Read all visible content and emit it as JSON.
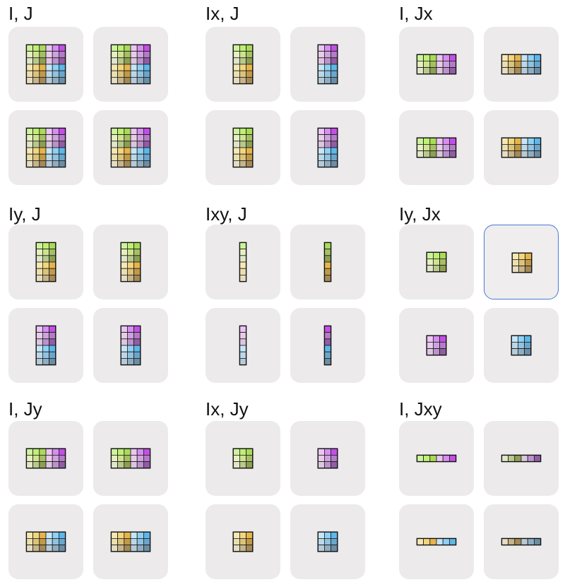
{
  "colors": {
    "A": [
      "#ccf59b",
      "#bfef74",
      "#a9dc56",
      "#e6efbf",
      "#cfe38e",
      "#a7bf63",
      "#e1e6cb",
      "#b9c98c",
      "#8e9f52"
    ],
    "B": [
      "#ecc4f5",
      "#d68ef0",
      "#c44fe7",
      "#e8cce8",
      "#cfa2df",
      "#b47cc8",
      "#ddc6e0",
      "#bb93cc",
      "#925ca6"
    ],
    "C": [
      "#f6e8b4",
      "#f2d67e",
      "#e8b44a",
      "#ebdfae",
      "#dcc37a",
      "#c19a47",
      "#e5dcc2",
      "#c7b589",
      "#a58956"
    ],
    "D": [
      "#c6e6f8",
      "#90d0f2",
      "#5cb7ea",
      "#bcd7e8",
      "#90c3e1",
      "#6ba6ca",
      "#b6cad8",
      "#8fadc2",
      "#6a8ea6"
    ]
  },
  "groups": [
    {
      "label": "I, J",
      "cards": [
        {
          "blocks": [
            [
              "A",
              "B"
            ],
            [
              "C",
              "D"
            ]
          ],
          "sub": [
            [
              0,
              1,
              2
            ],
            [
              0,
              1,
              2
            ]
          ]
        },
        {
          "blocks": [
            [
              "A",
              "B"
            ],
            [
              "C",
              "D"
            ]
          ],
          "sub": [
            [
              0,
              1,
              2
            ],
            [
              0,
              1,
              2
            ]
          ]
        },
        {
          "blocks": [
            [
              "A",
              "B"
            ],
            [
              "C",
              "D"
            ]
          ],
          "sub": [
            [
              0,
              1,
              2
            ],
            [
              0,
              1,
              2
            ]
          ]
        },
        {
          "blocks": [
            [
              "A",
              "B"
            ],
            [
              "C",
              "D"
            ]
          ],
          "sub": [
            [
              0,
              1,
              2
            ],
            [
              0,
              1,
              2
            ]
          ]
        }
      ]
    },
    {
      "label": "Ix, J",
      "cards": [
        {
          "blocks": [
            [
              "A"
            ],
            [
              "C"
            ]
          ],
          "sub": [
            [
              0,
              1,
              2
            ],
            [
              0,
              1,
              2
            ]
          ]
        },
        {
          "blocks": [
            [
              "B"
            ],
            [
              "D"
            ]
          ],
          "sub": [
            [
              0,
              1,
              2
            ],
            [
              0,
              1,
              2
            ]
          ]
        },
        {
          "blocks": [
            [
              "A"
            ],
            [
              "C"
            ]
          ],
          "sub": [
            [
              0,
              1,
              2
            ],
            [
              0,
              1,
              2
            ]
          ]
        },
        {
          "blocks": [
            [
              "B"
            ],
            [
              "D"
            ]
          ],
          "sub": [
            [
              0,
              1,
              2
            ],
            [
              0,
              1,
              2
            ]
          ]
        }
      ]
    },
    {
      "label": "I, Jx",
      "cards": [
        {
          "blocks": [
            [
              "A",
              "B"
            ]
          ],
          "sub": [
            [
              0,
              1,
              2
            ],
            [
              0,
              1,
              2
            ]
          ]
        },
        {
          "blocks": [
            [
              "C",
              "D"
            ]
          ],
          "sub": [
            [
              0,
              1,
              2
            ],
            [
              0,
              1,
              2
            ]
          ]
        },
        {
          "blocks": [
            [
              "A",
              "B"
            ]
          ],
          "sub": [
            [
              0,
              1,
              2
            ],
            [
              0,
              1,
              2
            ]
          ]
        },
        {
          "blocks": [
            [
              "C",
              "D"
            ]
          ],
          "sub": [
            [
              0,
              1,
              2
            ],
            [
              0,
              1,
              2
            ]
          ]
        }
      ]
    },
    {
      "label": "Iy, J",
      "cards": [
        {
          "blocks": [
            [
              "A"
            ],
            [
              "C"
            ]
          ],
          "sub": [
            [
              0,
              1,
              2
            ],
            [
              0,
              1,
              2
            ]
          ]
        },
        {
          "blocks": [
            [
              "A"
            ],
            [
              "C"
            ]
          ],
          "sub": [
            [
              0,
              1,
              2
            ],
            [
              0,
              1,
              2
            ]
          ]
        },
        {
          "blocks": [
            [
              "B"
            ],
            [
              "D"
            ]
          ],
          "sub": [
            [
              0,
              1,
              2
            ],
            [
              0,
              1,
              2
            ]
          ]
        },
        {
          "blocks": [
            [
              "B"
            ],
            [
              "D"
            ]
          ],
          "sub": [
            [
              0,
              1,
              2
            ],
            [
              0,
              1,
              2
            ]
          ]
        }
      ]
    },
    {
      "label": "Ixy, J",
      "cards": [
        {
          "blocks": [
            [
              "A"
            ],
            [
              "C"
            ]
          ],
          "sub": [
            [
              0,
              1,
              2
            ],
            [
              0
            ]
          ]
        },
        {
          "blocks": [
            [
              "A"
            ],
            [
              "C"
            ]
          ],
          "sub": [
            [
              0,
              1,
              2
            ],
            [
              2
            ]
          ]
        },
        {
          "blocks": [
            [
              "B"
            ],
            [
              "D"
            ]
          ],
          "sub": [
            [
              0,
              1,
              2
            ],
            [
              0
            ]
          ]
        },
        {
          "blocks": [
            [
              "B"
            ],
            [
              "D"
            ]
          ],
          "sub": [
            [
              0,
              1,
              2
            ],
            [
              2
            ]
          ]
        }
      ]
    },
    {
      "label": "Iy, Jx",
      "selected": 1,
      "cards": [
        {
          "blocks": [
            [
              "A"
            ]
          ],
          "sub": [
            [
              0,
              1,
              2
            ],
            [
              0,
              1,
              2
            ]
          ]
        },
        {
          "blocks": [
            [
              "C"
            ]
          ],
          "sub": [
            [
              0,
              1,
              2
            ],
            [
              0,
              1,
              2
            ]
          ]
        },
        {
          "blocks": [
            [
              "B"
            ]
          ],
          "sub": [
            [
              0,
              1,
              2
            ],
            [
              0,
              1,
              2
            ]
          ]
        },
        {
          "blocks": [
            [
              "D"
            ]
          ],
          "sub": [
            [
              0,
              1,
              2
            ],
            [
              0,
              1,
              2
            ]
          ]
        }
      ]
    },
    {
      "label": "I, Jy",
      "cards": [
        {
          "blocks": [
            [
              "A",
              "B"
            ]
          ],
          "sub": [
            [
              0,
              1,
              2
            ],
            [
              0,
              1,
              2
            ]
          ]
        },
        {
          "blocks": [
            [
              "A",
              "B"
            ]
          ],
          "sub": [
            [
              0,
              1,
              2
            ],
            [
              0,
              1,
              2
            ]
          ]
        },
        {
          "blocks": [
            [
              "C",
              "D"
            ]
          ],
          "sub": [
            [
              0,
              1,
              2
            ],
            [
              0,
              1,
              2
            ]
          ]
        },
        {
          "blocks": [
            [
              "C",
              "D"
            ]
          ],
          "sub": [
            [
              0,
              1,
              2
            ],
            [
              0,
              1,
              2
            ]
          ]
        }
      ]
    },
    {
      "label": "Ix, Jy",
      "cards": [
        {
          "blocks": [
            [
              "A"
            ]
          ],
          "sub": [
            [
              0,
              1,
              2
            ],
            [
              0,
              1,
              2
            ]
          ]
        },
        {
          "blocks": [
            [
              "B"
            ]
          ],
          "sub": [
            [
              0,
              1,
              2
            ],
            [
              0,
              1,
              2
            ]
          ]
        },
        {
          "blocks": [
            [
              "C"
            ]
          ],
          "sub": [
            [
              0,
              1,
              2
            ],
            [
              0,
              1,
              2
            ]
          ]
        },
        {
          "blocks": [
            [
              "D"
            ]
          ],
          "sub": [
            [
              0,
              1,
              2
            ],
            [
              0,
              1,
              2
            ]
          ]
        }
      ]
    },
    {
      "label": "I, Jxy",
      "cards": [
        {
          "blocks": [
            [
              "A",
              "B"
            ]
          ],
          "sub": [
            [
              0
            ],
            [
              0,
              1,
              2
            ]
          ]
        },
        {
          "blocks": [
            [
              "A",
              "B"
            ]
          ],
          "sub": [
            [
              2
            ],
            [
              0,
              1,
              2
            ]
          ]
        },
        {
          "blocks": [
            [
              "C",
              "D"
            ]
          ],
          "sub": [
            [
              0
            ],
            [
              0,
              1,
              2
            ]
          ]
        },
        {
          "blocks": [
            [
              "C",
              "D"
            ]
          ],
          "sub": [
            [
              2
            ],
            [
              0,
              1,
              2
            ]
          ]
        }
      ]
    }
  ]
}
